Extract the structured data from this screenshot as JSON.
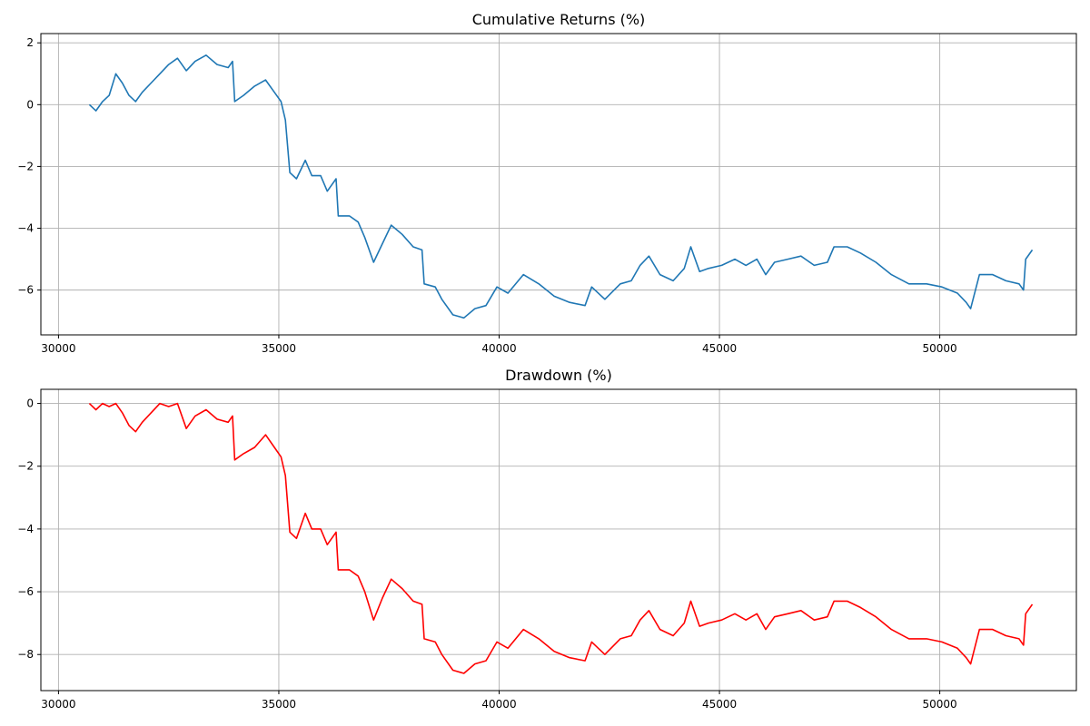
{
  "chart_data": [
    {
      "type": "line",
      "title": "Cumulative Returns (%)",
      "xlabel": "",
      "ylabel": "",
      "xlim": [
        29600,
        53100
      ],
      "ylim": [
        -7.45,
        2.3
      ],
      "x_ticks": [
        30000,
        35000,
        40000,
        45000,
        50000
      ],
      "y_ticks": [
        2,
        0,
        -2,
        -4,
        -6
      ],
      "grid": true,
      "color": "#1f77b4",
      "series": [
        {
          "x": [
            30700,
            30850,
            31000,
            31150,
            31300,
            31450,
            31600,
            31750,
            31900,
            32100,
            32300,
            32500,
            32700,
            32900,
            33100,
            33350,
            33600,
            33850,
            33950,
            34000,
            34200,
            34450,
            34700,
            34900,
            35050,
            35150,
            35250,
            35400,
            35600,
            35750,
            35950,
            36100,
            36300,
            36350,
            36600,
            36800,
            36950,
            37150,
            37350,
            37550,
            37800,
            38050,
            38250,
            38300,
            38550,
            38700,
            38950,
            39200,
            39450,
            39700,
            39950,
            40200,
            40550,
            40900,
            41250,
            41600,
            41950,
            42100,
            42400,
            42750,
            43000,
            43200,
            43400,
            43650,
            43950,
            44200,
            44350,
            44550,
            44750,
            45050,
            45350,
            45600,
            45850,
            46050,
            46250,
            46550,
            46850,
            47150,
            47450,
            47600,
            47900,
            48200,
            48550,
            48900,
            49300,
            49700,
            50050,
            50400,
            50600,
            50700,
            50900,
            51200,
            51500,
            51800,
            51900,
            51950,
            52100
          ],
          "y": [
            0,
            -0.2,
            0.1,
            0.3,
            1.0,
            0.7,
            0.3,
            0.1,
            0.4,
            0.7,
            1.0,
            1.3,
            1.5,
            1.1,
            1.4,
            1.6,
            1.3,
            1.2,
            1.4,
            0.1,
            0.3,
            0.6,
            0.8,
            0.4,
            0.1,
            -0.5,
            -2.2,
            -2.4,
            -1.8,
            -2.3,
            -2.3,
            -2.8,
            -2.4,
            -3.6,
            -3.6,
            -3.8,
            -4.3,
            -5.1,
            -4.5,
            -3.9,
            -4.2,
            -4.6,
            -4.7,
            -5.8,
            -5.9,
            -6.3,
            -6.8,
            -6.9,
            -6.6,
            -6.5,
            -5.9,
            -6.1,
            -5.5,
            -5.8,
            -6.2,
            -6.4,
            -6.5,
            -5.9,
            -6.3,
            -5.8,
            -5.7,
            -5.2,
            -4.9,
            -5.5,
            -5.7,
            -5.3,
            -4.6,
            -5.4,
            -5.3,
            -5.2,
            -5.0,
            -5.2,
            -5.0,
            -5.5,
            -5.1,
            -5.0,
            -4.9,
            -5.2,
            -5.1,
            -4.6,
            -4.6,
            -4.8,
            -5.1,
            -5.5,
            -5.8,
            -5.8,
            -5.9,
            -6.1,
            -6.4,
            -6.6,
            -5.5,
            -5.5,
            -5.7,
            -5.8,
            -6.0,
            -5.0,
            -4.7
          ]
        }
      ]
    },
    {
      "type": "line",
      "title": "Drawdown (%)",
      "xlabel": "",
      "ylabel": "",
      "xlim": [
        29600,
        53100
      ],
      "ylim": [
        -9.15,
        0.45
      ],
      "x_ticks": [
        30000,
        35000,
        40000,
        45000,
        50000
      ],
      "y_ticks": [
        0,
        -2,
        -4,
        -6,
        -8
      ],
      "grid": true,
      "color": "#ff0000",
      "series": [
        {
          "x": [
            30700,
            30850,
            31000,
            31150,
            31300,
            31450,
            31600,
            31750,
            31900,
            32100,
            32300,
            32500,
            32700,
            32900,
            33100,
            33350,
            33600,
            33850,
            33950,
            34000,
            34200,
            34450,
            34700,
            34900,
            35050,
            35150,
            35250,
            35400,
            35600,
            35750,
            35950,
            36100,
            36300,
            36350,
            36600,
            36800,
            36950,
            37150,
            37350,
            37550,
            37800,
            38050,
            38250,
            38300,
            38550,
            38700,
            38950,
            39200,
            39450,
            39700,
            39950,
            40200,
            40550,
            40900,
            41250,
            41600,
            41950,
            42100,
            42400,
            42750,
            43000,
            43200,
            43400,
            43650,
            43950,
            44200,
            44350,
            44550,
            44750,
            45050,
            45350,
            45600,
            45850,
            46050,
            46250,
            46550,
            46850,
            47150,
            47450,
            47600,
            47900,
            48200,
            48550,
            48900,
            49300,
            49700,
            50050,
            50400,
            50600,
            50700,
            50900,
            51200,
            51500,
            51800,
            51900,
            51950,
            52100
          ],
          "y": [
            0,
            -0.2,
            0,
            -0.1,
            0,
            -0.3,
            -0.7,
            -0.9,
            -0.6,
            -0.3,
            0,
            -0.1,
            0,
            -0.8,
            -0.4,
            -0.2,
            -0.5,
            -0.6,
            -0.4,
            -1.8,
            -1.6,
            -1.4,
            -1.0,
            -1.4,
            -1.7,
            -2.3,
            -4.1,
            -4.3,
            -3.5,
            -4.0,
            -4.0,
            -4.5,
            -4.1,
            -5.3,
            -5.3,
            -5.5,
            -6.0,
            -6.9,
            -6.2,
            -5.6,
            -5.9,
            -6.3,
            -6.4,
            -7.5,
            -7.6,
            -8.0,
            -8.5,
            -8.6,
            -8.3,
            -8.2,
            -7.6,
            -7.8,
            -7.2,
            -7.5,
            -7.9,
            -8.1,
            -8.2,
            -7.6,
            -8.0,
            -7.5,
            -7.4,
            -6.9,
            -6.6,
            -7.2,
            -7.4,
            -7.0,
            -6.3,
            -7.1,
            -7.0,
            -6.9,
            -6.7,
            -6.9,
            -6.7,
            -7.2,
            -6.8,
            -6.7,
            -6.6,
            -6.9,
            -6.8,
            -6.3,
            -6.3,
            -6.5,
            -6.8,
            -7.2,
            -7.5,
            -7.5,
            -7.6,
            -7.8,
            -8.1,
            -8.3,
            -7.2,
            -7.2,
            -7.4,
            -7.5,
            -7.7,
            -6.7,
            -6.4
          ]
        }
      ]
    }
  ]
}
